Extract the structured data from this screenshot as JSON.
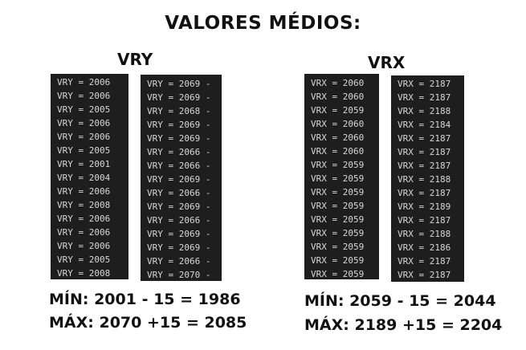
{
  "title": "VALORES MÉDIOS:",
  "vry": {
    "heading": "VRY",
    "col1": [
      "VRY = 2006",
      "VRY = 2006",
      "VRY = 2005",
      "VRY = 2006",
      "VRY = 2006",
      "VRY = 2005",
      "VRY = 2001",
      "VRY = 2004",
      "VRY = 2006",
      "VRY = 2008",
      "VRY = 2006",
      "VRY = 2006",
      "VRY = 2006",
      "VRY = 2005",
      "VRY = 2008"
    ],
    "col2": [
      "VRY = 2069 -",
      "VRY = 2069 -",
      "VRY = 2068 -",
      "VRY = 2069 -",
      "VRY = 2069 -",
      "VRY = 2066 -",
      "VRY = 2066 -",
      "VRY = 2069 -",
      "VRY = 2066 -",
      "VRY = 2069 -",
      "VRY = 2066 -",
      "VRY = 2069 -",
      "VRY = 2069 -",
      "VRY = 2066 -",
      "VRY = 2070 -"
    ],
    "min": "MÍN: 2001 - 15 = 1986",
    "max": "MÁX: 2070 +15 = 2085"
  },
  "vrx": {
    "heading": "VRX",
    "col1": [
      "VRX = 2060",
      "VRX = 2060",
      "VRX = 2059",
      "VRX = 2060",
      "VRX = 2060",
      "VRX = 2060",
      "VRX = 2059",
      "VRX = 2059",
      "VRX = 2059",
      "VRX = 2059",
      "VRX = 2059",
      "VRX = 2059",
      "VRX = 2059",
      "VRX = 2059",
      "VRX = 2059"
    ],
    "col2": [
      "VRX = 2187",
      "VRX = 2187",
      "VRX = 2188",
      "VRX = 2184",
      "VRX = 2187",
      "VRX = 2187",
      "VRX = 2187",
      "VRX = 2188",
      "VRX = 2187",
      "VRX = 2189",
      "VRX = 2187",
      "VRX = 2188",
      "VRX = 2186",
      "VRX = 2187",
      "VRX = 2187"
    ],
    "min": "MÍN: 2059 - 15 = 2044",
    "max": "MÁX: 2189 +15 = 2204"
  }
}
